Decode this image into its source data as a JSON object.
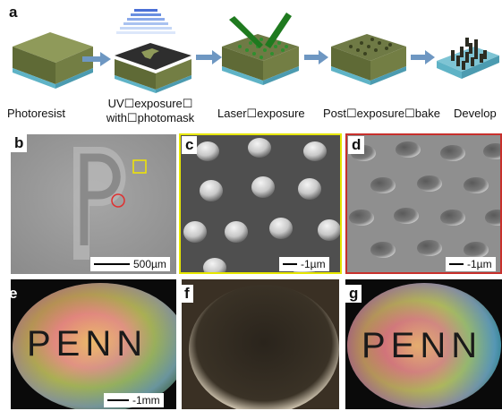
{
  "panel_labels": {
    "a": "a",
    "b": "b",
    "c": "c",
    "d": "d",
    "e": "e",
    "f": "f",
    "g": "g"
  },
  "steps": {
    "s1": "Photoresist",
    "s2_line1": "UV☐exposure☐",
    "s2_line2": "with☐photomask",
    "s3": "Laser☐exposure",
    "s4": "Post☐exposure☐bake",
    "s5": "Develop"
  },
  "scalebars": {
    "b": "500µm",
    "c": "‐1µm",
    "d": "‐1µm",
    "e": "‐1mm"
  },
  "photo_text": {
    "e": "PENN",
    "g": "PENN"
  },
  "colors": {
    "resist": "#6f7a45",
    "substrate": "#5fb3c6",
    "arrow": "#6e97c2",
    "panel_c_border": "#e6e600",
    "panel_d_border": "#c8302c",
    "mark_square": "#f2e600",
    "mark_circle": "#e03030"
  }
}
